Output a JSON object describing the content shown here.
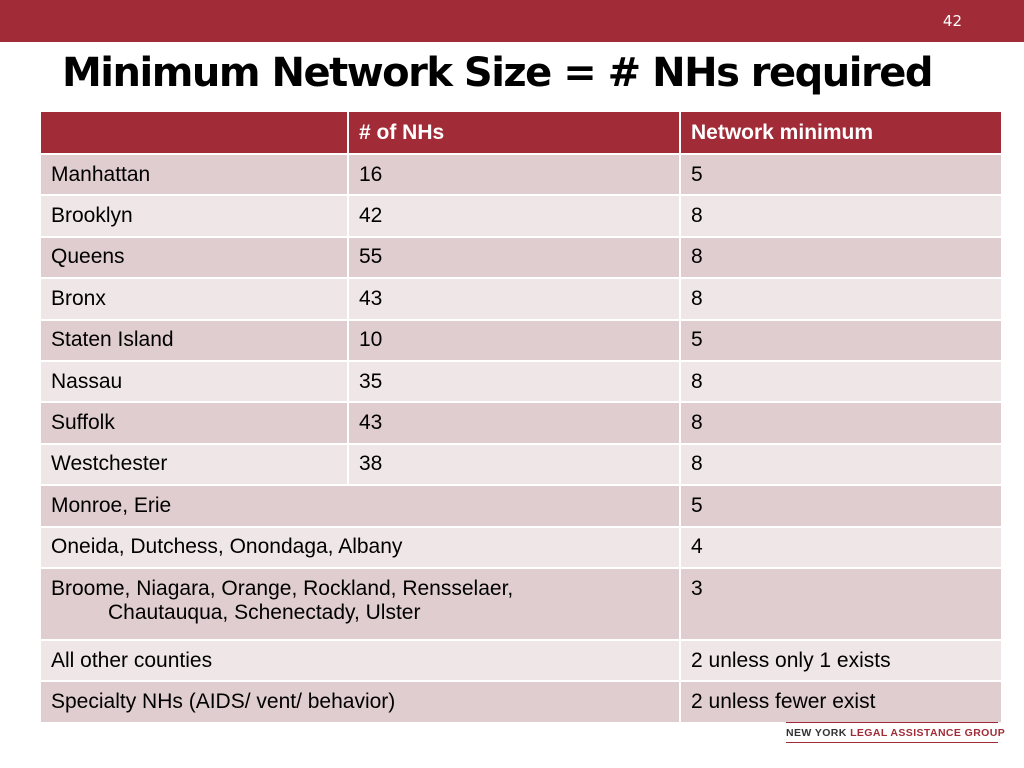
{
  "slide": {
    "number": "42",
    "title": "Minimum Network Size = # NHs required"
  },
  "table": {
    "headers": [
      "",
      "# of NHs",
      "Network minimum"
    ],
    "rows": [
      {
        "county": "Manhattan",
        "nhs": "16",
        "minimum": "5"
      },
      {
        "county": "Brooklyn",
        "nhs": "42",
        "minimum": "8"
      },
      {
        "county": "Queens",
        "nhs": "55",
        "minimum": "8"
      },
      {
        "county": "Bronx",
        "nhs": "43",
        "minimum": "8"
      },
      {
        "county": "Staten Island",
        "nhs": "10",
        "minimum": "5"
      },
      {
        "county": "Nassau",
        "nhs": "35",
        "minimum": "8"
      },
      {
        "county": "Suffolk",
        "nhs": "43",
        "minimum": "8"
      },
      {
        "county": "Westchester",
        "nhs": "38",
        "minimum": "8"
      }
    ],
    "merged_rows": [
      {
        "county": "Monroe, Erie",
        "minimum": "5"
      },
      {
        "county": "Oneida,  Dutchess, Onondaga, Albany",
        "minimum": "4"
      },
      {
        "county_line1": "Broome, Niagara, Orange, Rockland, Rensselaer,",
        "county_line2": "Chautauqua, Schenectady, Ulster",
        "minimum": "3"
      },
      {
        "county": "All other counties",
        "minimum": "2 unless only 1 exists"
      },
      {
        "county": "Specialty NHs (AIDS/ vent/ behavior)",
        "minimum": "2 unless fewer exist"
      }
    ]
  },
  "footer": {
    "logo_part1": "NEW YORK",
    "logo_part2": "LEGAL ASSISTANCE GROUP"
  },
  "colors": {
    "accent": "#a12c38",
    "row_dark": "#e0cdcf",
    "row_light": "#efe6e7"
  }
}
